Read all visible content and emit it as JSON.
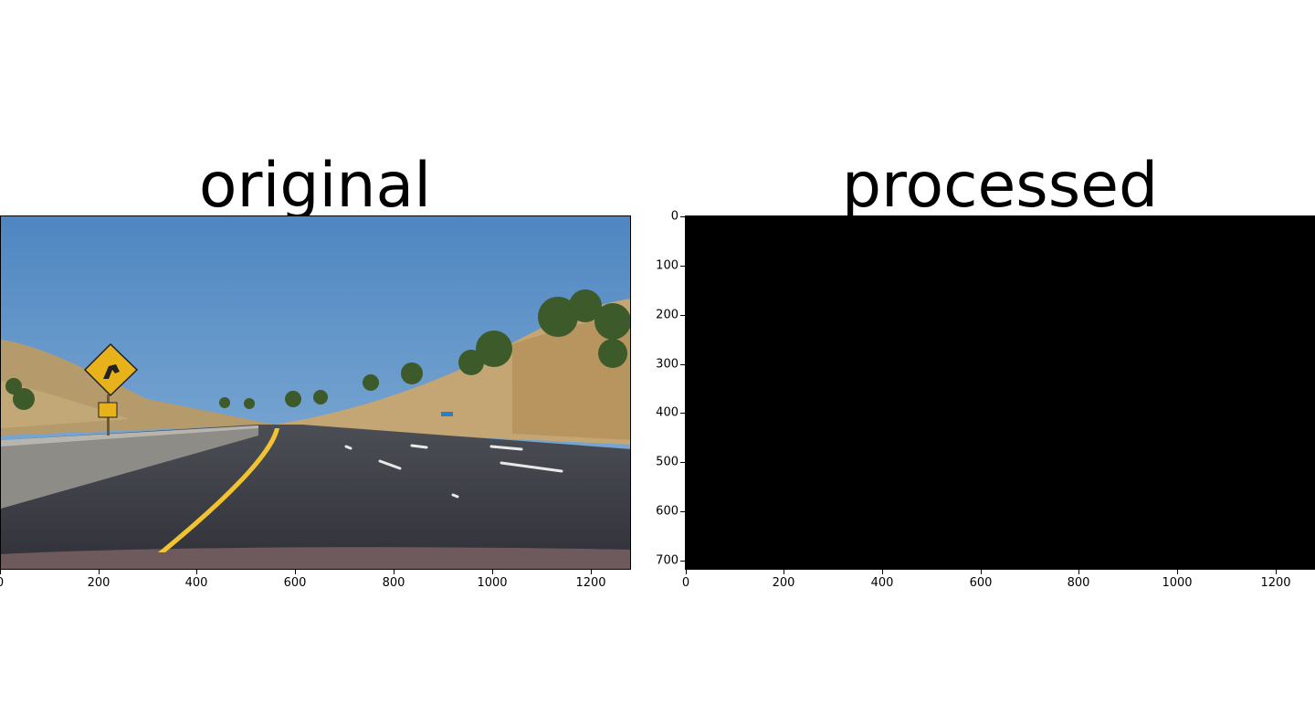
{
  "panels": {
    "original": {
      "title": "original"
    },
    "processed": {
      "title": "processed"
    }
  },
  "x_ticks": [
    "0",
    "200",
    "400",
    "600",
    "800",
    "1000",
    "1200"
  ],
  "y_ticks": [
    "0",
    "100",
    "200",
    "300",
    "400",
    "500",
    "600",
    "700"
  ],
  "colors": {
    "sky": "#5b8fc7",
    "road": "#3b3d45",
    "lane_yellow": "#f1c232",
    "sign_yellow": "#e7b21a",
    "processed_bg": "#000000"
  }
}
